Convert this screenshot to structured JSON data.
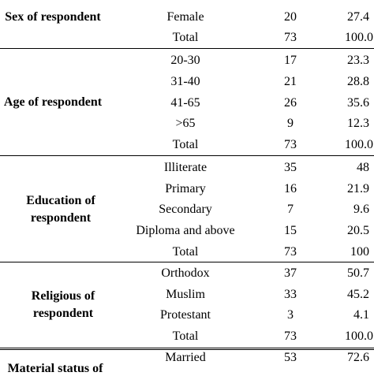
{
  "rows": [
    {
      "label": "Female",
      "n": "20",
      "pct": "27.4"
    },
    {
      "label": "Total",
      "n": "73",
      "pct": "100.0"
    },
    {
      "label": "20-30",
      "n": "17",
      "pct": "23.3"
    },
    {
      "label": "31-40",
      "n": "21",
      "pct": "28.8"
    },
    {
      "label": "41-65",
      "n": "26",
      "pct": "35.6"
    },
    {
      "label": ">65",
      "n": "9",
      "pct": "12.3"
    },
    {
      "label": "Total",
      "n": "73",
      "pct": "100.0"
    },
    {
      "label": "Illiterate",
      "n": "35",
      "pct": "48"
    },
    {
      "label": "Primary",
      "n": "16",
      "pct": "21.9"
    },
    {
      "label": "Secondary",
      "n": "7",
      "pct": "9.6"
    },
    {
      "label": "Diploma and above",
      "n": "15",
      "pct": "20.5"
    },
    {
      "label": "Total",
      "n": "73",
      "pct": "100"
    },
    {
      "label": "Orthodox",
      "n": "37",
      "pct": "50.7"
    },
    {
      "label": "Muslim",
      "n": "33",
      "pct": "45.2"
    },
    {
      "label": "Protestant",
      "n": "3",
      "pct": "4.1"
    },
    {
      "label": "Total",
      "n": "73",
      "pct": "100.0"
    },
    {
      "label": "Married",
      "n": "53",
      "pct": "72.6"
    }
  ],
  "categories": [
    {
      "line1": "Sex of respondent",
      "line2": ""
    },
    {
      "line1": "Age of respondent",
      "line2": ""
    },
    {
      "line1": "Education of",
      "line2": "respondent"
    },
    {
      "line1": "Religious of",
      "line2": "respondent"
    },
    {
      "line1": "Material status of",
      "line2": ""
    }
  ]
}
